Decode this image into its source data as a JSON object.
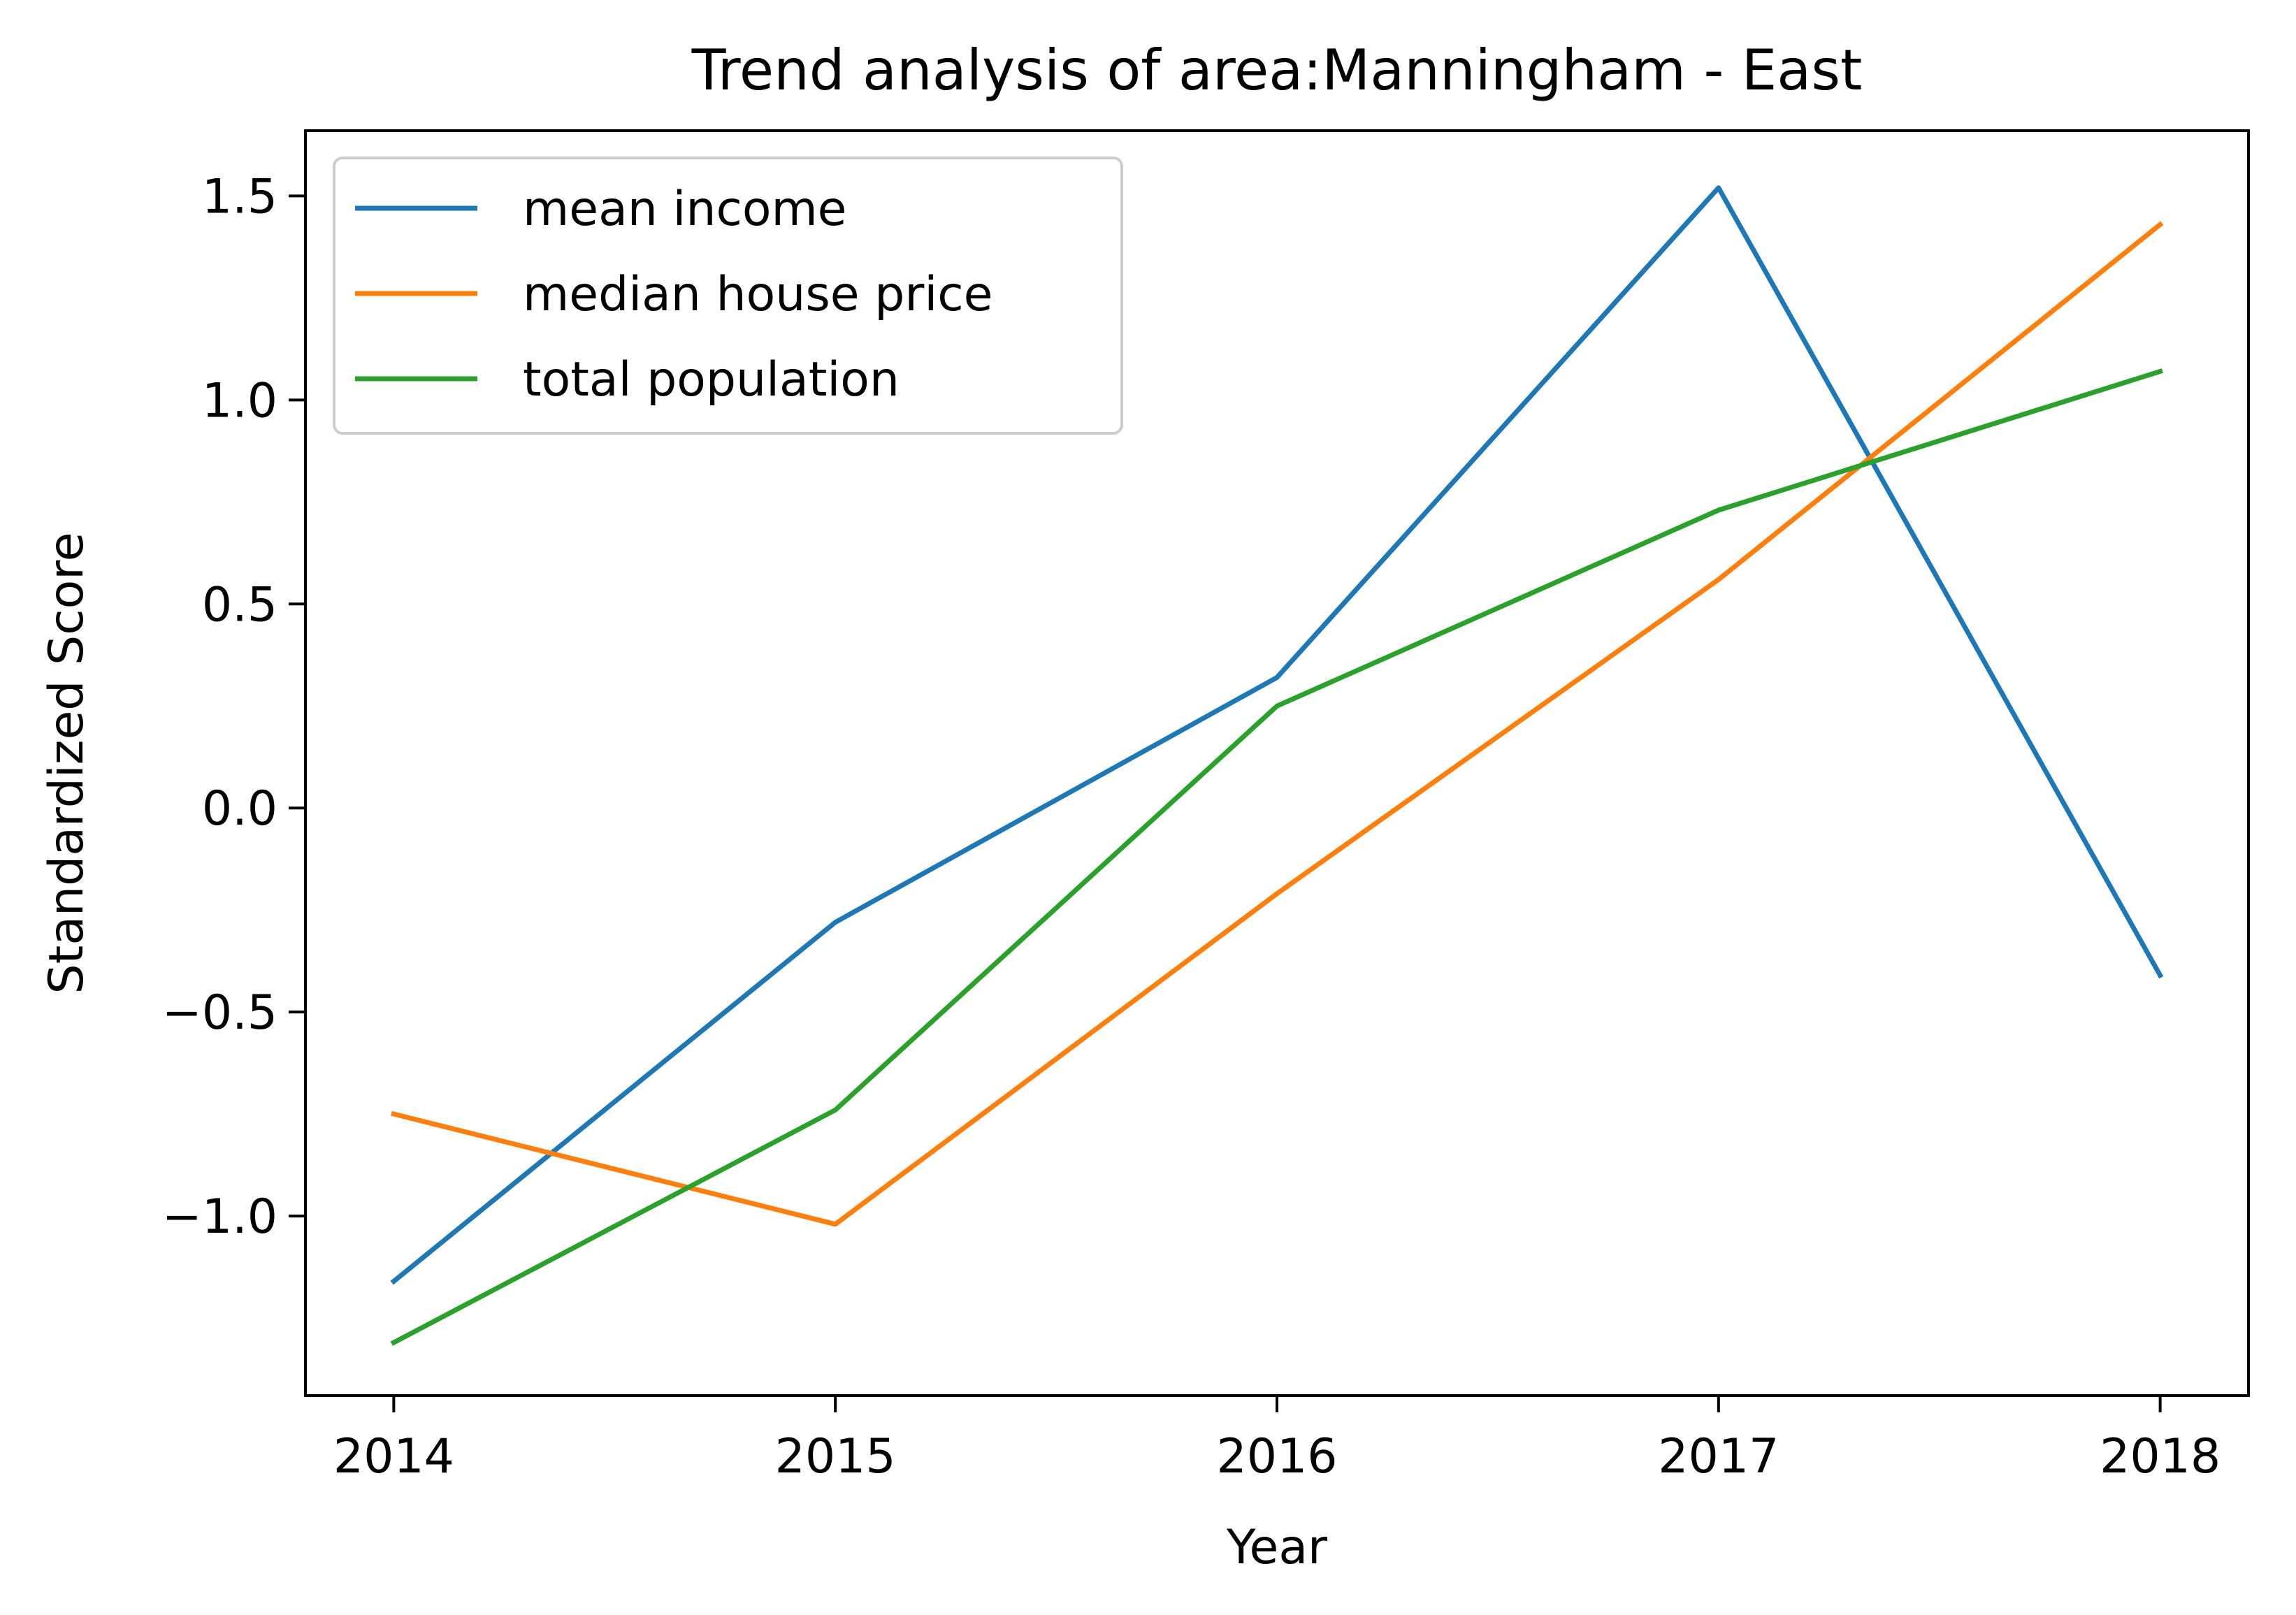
{
  "chart_data": {
    "type": "line",
    "title": "Trend analysis of area:Manningham - East",
    "xlabel": "Year",
    "ylabel": "Standardized Score",
    "x": [
      2014,
      2015,
      2016,
      2017,
      2018
    ],
    "x_tick_labels": [
      "2014",
      "2015",
      "2016",
      "2017",
      "2018"
    ],
    "xlim": [
      2013.8,
      2018.2
    ],
    "ylim": [
      -1.44,
      1.66
    ],
    "y_ticks": [
      -1.0,
      -0.5,
      0.0,
      0.5,
      1.0,
      1.5
    ],
    "y_tick_labels": [
      "−1.0",
      "−0.5",
      "0.0",
      "0.5",
      "1.0",
      "1.5"
    ],
    "grid": false,
    "legend_position": "upper-left",
    "series": [
      {
        "name": "mean income",
        "color": "#1f77b4",
        "values": [
          -1.16,
          -0.28,
          0.32,
          1.52,
          -0.41
        ]
      },
      {
        "name": "median house price",
        "color": "#ff7f0e",
        "values": [
          -0.75,
          -1.02,
          -0.21,
          0.56,
          1.43
        ]
      },
      {
        "name": "total population",
        "color": "#2ca02c",
        "values": [
          -1.31,
          -0.74,
          0.25,
          0.73,
          1.07
        ]
      }
    ]
  }
}
